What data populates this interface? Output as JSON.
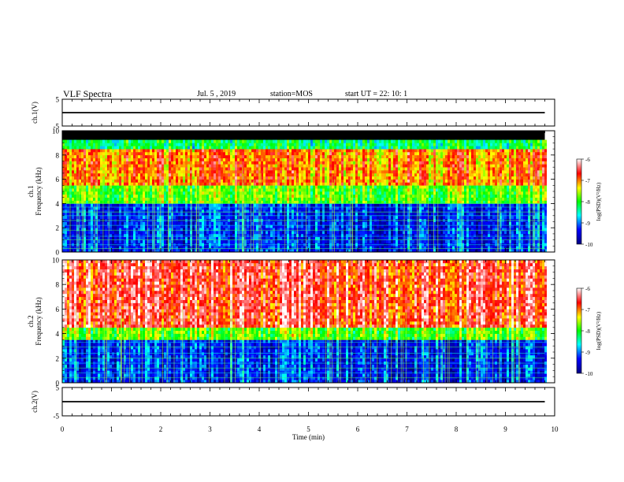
{
  "header": {
    "title": "VLF Spectra",
    "date": "Jul. 5 , 2019",
    "station": "station=MOS",
    "start_time": "start UT = 22: 10: 1"
  },
  "chart_data": [
    {
      "type": "line",
      "panel": "ch1-waveform",
      "ylabel": "ch.1(V)",
      "ylim": [
        -5,
        5
      ],
      "yticks": [
        "5",
        "-5"
      ],
      "x": [
        0,
        9.8
      ],
      "y": [
        0,
        0
      ],
      "grid": false
    },
    {
      "type": "heatmap",
      "panel": "ch1-spectrogram",
      "ylabel": "ch.1\nFrequency (kHz)",
      "ylim": [
        0,
        10
      ],
      "yticks": [
        "0",
        "2",
        "4",
        "6",
        "8",
        "10"
      ],
      "xlim": [
        0,
        10
      ],
      "data_end_min": 9.8,
      "description_bands_khz": {
        "strong_band": [
          5.5,
          8.5
        ],
        "mid_band": [
          4,
          5.5
        ],
        "weak_band": [
          0,
          4
        ],
        "no_data": [
          9.2,
          10
        ]
      },
      "colorbar": {
        "label": "log(PSD)(V²/Hz)",
        "ticks": [
          "-6",
          "-7",
          "-8",
          "-9",
          "-10"
        ],
        "range": [
          -10,
          -6
        ],
        "colors": [
          "#000080",
          "#0000ff",
          "#00ffff",
          "#00ff00",
          "#ffff00",
          "#ff0000",
          "#ffffff"
        ]
      }
    },
    {
      "type": "heatmap",
      "panel": "ch2-spectrogram",
      "ylabel": "ch.2\nFrequency (kHz)",
      "ylim": [
        0,
        10
      ],
      "yticks": [
        "0",
        "2",
        "4",
        "6",
        "8",
        "10"
      ],
      "xlim": [
        0,
        10
      ],
      "data_end_min": 9.8,
      "description_bands_khz": {
        "strong_band": [
          4.5,
          10
        ],
        "mid_band": [
          3.5,
          4.5
        ],
        "weak_band": [
          0,
          3.5
        ]
      },
      "colorbar": {
        "label": "log(PSD)(V²/Hz)",
        "ticks": [
          "-6",
          "-7",
          "-8",
          "-9",
          "-10"
        ],
        "range": [
          -10,
          -6
        ],
        "colors": [
          "#000080",
          "#0000ff",
          "#00ffff",
          "#00ff00",
          "#ffff00",
          "#ff0000",
          "#ffffff"
        ]
      }
    },
    {
      "type": "line",
      "panel": "ch2-waveform",
      "ylabel": "ch.2(V)",
      "ylim": [
        -5,
        5
      ],
      "yticks": [
        "5",
        "-5"
      ],
      "x": [
        0,
        9.8
      ],
      "y": [
        0,
        0
      ],
      "grid": false
    }
  ],
  "xaxis": {
    "label": "Time (min)",
    "ticks": [
      "0",
      "1",
      "2",
      "3",
      "4",
      "5",
      "6",
      "7",
      "8",
      "9",
      "10"
    ],
    "range": [
      0,
      10
    ]
  }
}
